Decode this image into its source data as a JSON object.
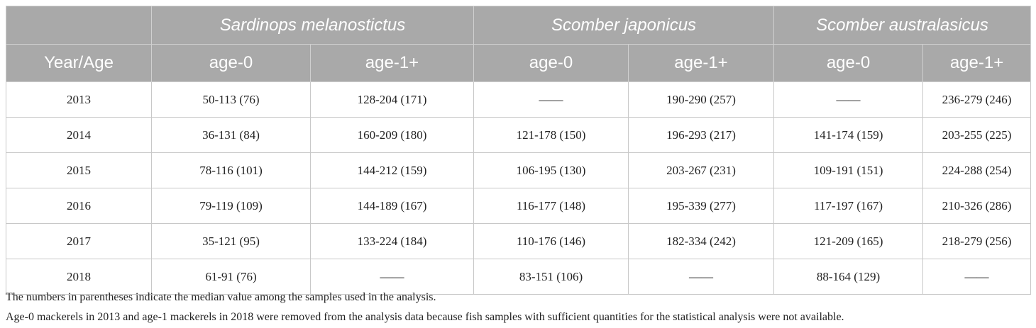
{
  "table": {
    "species": [
      "Sardinops melanostictus",
      "Scomber japonicus",
      "Scomber australasicus"
    ],
    "header": [
      "Year/Age",
      "age-0",
      "age-1+",
      "age-0",
      "age-1+",
      "age-0",
      "age-1+"
    ],
    "rows": [
      [
        "2013",
        "50-113 (76)",
        "128-204 (171)",
        "——",
        "190-290 (257)",
        "——",
        "236-279 (246)"
      ],
      [
        "2014",
        "36-131 (84)",
        "160-209 (180)",
        "121-178 (150)",
        "196-293 (217)",
        "141-174 (159)",
        "203-255 (225)"
      ],
      [
        "2015",
        "78-116 (101)",
        "144-212 (159)",
        "106-195 (130)",
        "203-267 (231)",
        "109-191 (151)",
        "224-288 (254)"
      ],
      [
        "2016",
        "79-119 (109)",
        "144-189 (167)",
        "116-177 (148)",
        "195-339 (277)",
        "117-197 (167)",
        "210-326 (286)"
      ],
      [
        "2017",
        "35-121 (95)",
        "133-224 (184)",
        "110-176 (146)",
        "182-334 (242)",
        "121-209 (165)",
        "218-279 (256)"
      ],
      [
        "2018",
        "61-91 (76)",
        "——",
        "83-151 (106)",
        "——",
        "88-164 (129)",
        "——"
      ]
    ]
  },
  "notes": [
    "The numbers in parentheses indicate the median value among the samples used in the analysis.",
    "Age-0 mackerels in 2013 and age-1 mackerels in 2018 were removed from the analysis data because fish samples with sufficient quantities for the statistical analysis were not available."
  ]
}
